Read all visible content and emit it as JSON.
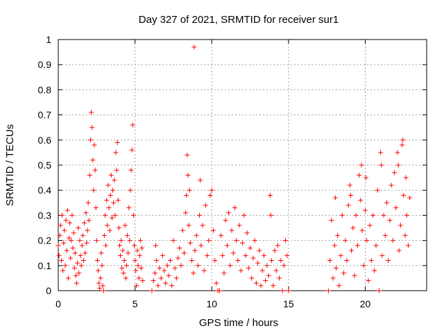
{
  "chart_data": {
    "type": "scatter",
    "title": "Day 327 of 2021, SRMTID for receiver sur1",
    "xlabel": "GPS time / hours",
    "ylabel": "SRMTID / TECUs",
    "xlim": [
      0,
      24
    ],
    "ylim": [
      0,
      1
    ],
    "xticks": [
      0,
      5,
      10,
      15,
      20
    ],
    "xtick_labels": [
      "0",
      "5",
      "10",
      "15",
      "20"
    ],
    "yticks": [
      0,
      0.1,
      0.2,
      0.3,
      0.4,
      0.5,
      0.6,
      0.7,
      0.8,
      0.9,
      1
    ],
    "ytick_labels": [
      "0",
      "0.1",
      "0.2",
      "0.3",
      "0.4",
      "0.5",
      "0.6",
      "0.7",
      "0.8",
      "0.9",
      "1"
    ],
    "grid": true,
    "marker": "+",
    "marker_color": "#ff0000",
    "series": [
      {
        "name": "SRMTID",
        "points": [
          [
            0.0,
            0.18
          ],
          [
            0.05,
            0.14
          ],
          [
            0.1,
            0.22
          ],
          [
            0.15,
            0.26
          ],
          [
            0.2,
            0.12
          ],
          [
            0.25,
            0.3
          ],
          [
            0.3,
            0.08
          ],
          [
            0.35,
            0.19
          ],
          [
            0.4,
            0.24
          ],
          [
            0.45,
            0.1
          ],
          [
            0.5,
            0.28
          ],
          [
            0.55,
            0.16
          ],
          [
            0.6,
            0.32
          ],
          [
            0.65,
            0.05
          ],
          [
            0.7,
            0.21
          ],
          [
            0.75,
            0.27
          ],
          [
            0.8,
            0.13
          ],
          [
            0.85,
            0.2
          ],
          [
            0.9,
            0.3
          ],
          [
            0.95,
            0.17
          ],
          [
            1.0,
            0.23
          ],
          [
            1.05,
            0.09
          ],
          [
            1.1,
            0.15
          ],
          [
            1.15,
            0.06
          ],
          [
            1.2,
            0.03
          ],
          [
            1.25,
            0.11
          ],
          [
            1.3,
            0.25
          ],
          [
            1.35,
            0.07
          ],
          [
            1.4,
            0.2
          ],
          [
            1.45,
            0.14
          ],
          [
            1.5,
            0.1
          ],
          [
            1.55,
            0.18
          ],
          [
            1.6,
            0.22
          ],
          [
            1.65,
            0.12
          ],
          [
            1.7,
            0.27
          ],
          [
            1.75,
            0.15
          ],
          [
            1.8,
            0.31
          ],
          [
            1.85,
            0.19
          ],
          [
            1.9,
            0.24
          ],
          [
            1.95,
            0.35
          ],
          [
            2.0,
            0.28
          ],
          [
            2.05,
            0.46
          ],
          [
            2.1,
            0.6
          ],
          [
            2.15,
            0.71
          ],
          [
            2.2,
            0.65
          ],
          [
            2.25,
            0.52
          ],
          [
            2.3,
            0.4
          ],
          [
            2.35,
            0.58
          ],
          [
            2.4,
            0.48
          ],
          [
            2.45,
            0.33
          ],
          [
            2.5,
            0.2
          ],
          [
            2.55,
            0.12
          ],
          [
            2.6,
            0.08
          ],
          [
            2.65,
            0.03
          ],
          [
            2.7,
            0.01
          ],
          [
            2.75,
            0.05
          ],
          [
            2.8,
            0.15
          ],
          [
            2.85,
            0.1
          ],
          [
            2.9,
            0.02
          ],
          [
            2.95,
            0.0
          ],
          [
            3.0,
            0.22
          ],
          [
            3.05,
            0.3
          ],
          [
            3.1,
            0.18
          ],
          [
            3.15,
            0.36
          ],
          [
            3.2,
            0.26
          ],
          [
            3.25,
            0.42
          ],
          [
            3.3,
            0.33
          ],
          [
            3.35,
            0.24
          ],
          [
            3.4,
            0.38
          ],
          [
            3.45,
            0.46
          ],
          [
            3.5,
            0.29
          ],
          [
            3.55,
            0.4
          ],
          [
            3.6,
            0.35
          ],
          [
            3.65,
            0.44
          ],
          [
            3.7,
            0.3
          ],
          [
            3.75,
            0.55
          ],
          [
            3.8,
            0.48
          ],
          [
            3.85,
            0.59
          ],
          [
            3.9,
            0.36
          ],
          [
            3.95,
            0.25
          ],
          [
            4.0,
            0.18
          ],
          [
            4.05,
            0.14
          ],
          [
            4.1,
            0.2
          ],
          [
            4.15,
            0.09
          ],
          [
            4.2,
            0.16
          ],
          [
            4.25,
            0.07
          ],
          [
            4.3,
            0.12
          ],
          [
            4.35,
            0.26
          ],
          [
            4.4,
            0.05
          ],
          [
            4.45,
            0.1
          ],
          [
            4.5,
            0.22
          ],
          [
            4.55,
            0.15
          ],
          [
            4.6,
            0.33
          ],
          [
            4.65,
            0.2
          ],
          [
            4.7,
            0.4
          ],
          [
            4.75,
            0.48
          ],
          [
            4.8,
            0.56
          ],
          [
            4.85,
            0.66
          ],
          [
            4.9,
            0.3
          ],
          [
            4.95,
            0.18
          ],
          [
            5.0,
            0.12
          ],
          [
            5.05,
            0.08
          ],
          [
            5.1,
            0.02
          ],
          [
            5.15,
            0.16
          ],
          [
            5.2,
            0.1
          ],
          [
            5.25,
            0.05
          ],
          [
            5.3,
            0.14
          ],
          [
            5.35,
            0.2
          ],
          [
            5.4,
            0.09
          ],
          [
            5.45,
            0.17
          ],
          [
            5.5,
            0.04
          ],
          [
            6.1,
            0.0
          ],
          [
            6.2,
            0.04
          ],
          [
            6.3,
            0.07
          ],
          [
            6.35,
            0.18
          ],
          [
            6.4,
            0.12
          ],
          [
            6.5,
            0.02
          ],
          [
            6.6,
            0.09
          ],
          [
            6.7,
            0.05
          ],
          [
            6.8,
            0.14
          ],
          [
            6.9,
            0.08
          ],
          [
            7.0,
            0.03
          ],
          [
            7.1,
            0.1
          ],
          [
            7.2,
            0.06
          ],
          [
            7.3,
            0.12
          ],
          [
            7.4,
            0.02
          ],
          [
            7.5,
            0.2
          ],
          [
            7.6,
            0.09
          ],
          [
            7.7,
            0.05
          ],
          [
            7.8,
            0.13
          ],
          [
            7.9,
            0.17
          ],
          [
            8.0,
            0.1
          ],
          [
            8.1,
            0.24
          ],
          [
            8.2,
            0.15
          ],
          [
            8.3,
            0.31
          ],
          [
            8.35,
            0.38
          ],
          [
            8.4,
            0.54
          ],
          [
            8.45,
            0.46
          ],
          [
            8.5,
            0.26
          ],
          [
            8.55,
            0.4
          ],
          [
            8.6,
            0.19
          ],
          [
            8.7,
            0.12
          ],
          [
            8.8,
            0.07
          ],
          [
            8.85,
            0.97
          ],
          [
            8.9,
            0.16
          ],
          [
            9.0,
            0.22
          ],
          [
            9.1,
            0.1
          ],
          [
            9.2,
            0.3
          ],
          [
            9.25,
            0.44
          ],
          [
            9.3,
            0.18
          ],
          [
            9.4,
            0.26
          ],
          [
            9.5,
            0.08
          ],
          [
            9.6,
            0.34
          ],
          [
            9.7,
            0.14
          ],
          [
            9.8,
            0.2
          ],
          [
            9.9,
            0.38
          ],
          [
            10.0,
            0.4
          ],
          [
            10.1,
            0.24
          ],
          [
            10.2,
            0.12
          ],
          [
            10.3,
            0.03
          ],
          [
            10.4,
            0.0
          ],
          [
            10.5,
            0.0
          ],
          [
            10.6,
            0.22
          ],
          [
            10.7,
            0.14
          ],
          [
            10.8,
            0.07
          ],
          [
            10.9,
            0.28
          ],
          [
            11.0,
            0.18
          ],
          [
            11.1,
            0.31
          ],
          [
            11.2,
            0.1
          ],
          [
            11.3,
            0.24
          ],
          [
            11.4,
            0.15
          ],
          [
            11.5,
            0.33
          ],
          [
            11.6,
            0.2
          ],
          [
            11.7,
            0.12
          ],
          [
            11.8,
            0.26
          ],
          [
            11.9,
            0.08
          ],
          [
            12.0,
            0.19
          ],
          [
            12.1,
            0.3
          ],
          [
            12.2,
            0.14
          ],
          [
            12.3,
            0.23
          ],
          [
            12.4,
            0.09
          ],
          [
            12.5,
            0.17
          ],
          [
            12.6,
            0.05
          ],
          [
            12.7,
            0.13
          ],
          [
            12.8,
            0.2
          ],
          [
            12.9,
            0.03
          ],
          [
            13.0,
            0.11
          ],
          [
            13.1,
            0.16
          ],
          [
            13.2,
            0.02
          ],
          [
            13.3,
            0.08
          ],
          [
            13.4,
            0.14
          ],
          [
            13.5,
            0.04
          ],
          [
            13.6,
            0.1
          ],
          [
            13.7,
            0.06
          ],
          [
            13.8,
            0.38
          ],
          [
            13.85,
            0.3
          ],
          [
            13.9,
            0.12
          ],
          [
            14.0,
            0.02
          ],
          [
            14.1,
            0.16
          ],
          [
            14.2,
            0.08
          ],
          [
            14.3,
            0.18
          ],
          [
            14.4,
            0.05
          ],
          [
            14.5,
            0.12
          ],
          [
            14.6,
            0.0
          ],
          [
            14.7,
            0.1
          ],
          [
            14.8,
            0.2
          ],
          [
            14.9,
            0.14
          ],
          [
            15.0,
            0.0
          ],
          [
            17.6,
            0.0
          ],
          [
            17.7,
            0.12
          ],
          [
            17.8,
            0.28
          ],
          [
            17.9,
            0.05
          ],
          [
            18.0,
            0.18
          ],
          [
            18.05,
            0.37
          ],
          [
            18.1,
            0.09
          ],
          [
            18.2,
            0.22
          ],
          [
            18.3,
            0.02
          ],
          [
            18.4,
            0.14
          ],
          [
            18.5,
            0.3
          ],
          [
            18.6,
            0.07
          ],
          [
            18.7,
            0.2
          ],
          [
            18.8,
            0.12
          ],
          [
            18.9,
            0.34
          ],
          [
            19.0,
            0.42
          ],
          [
            19.05,
            0.38
          ],
          [
            19.1,
            0.16
          ],
          [
            19.2,
            0.25
          ],
          [
            19.3,
            0.06
          ],
          [
            19.4,
            0.3
          ],
          [
            19.5,
            0.18
          ],
          [
            19.6,
            0.46
          ],
          [
            19.7,
            0.36
          ],
          [
            19.75,
            0.5
          ],
          [
            19.8,
            0.24
          ],
          [
            19.9,
            0.1
          ],
          [
            20.0,
            0.32
          ],
          [
            20.05,
            0.45
          ],
          [
            20.1,
            0.2
          ],
          [
            20.2,
            0.04
          ],
          [
            20.3,
            0.26
          ],
          [
            20.4,
            0.12
          ],
          [
            20.5,
            0.3
          ],
          [
            20.6,
            0.08
          ],
          [
            20.7,
            0.18
          ],
          [
            20.8,
            0.4
          ],
          [
            20.9,
            0.0
          ],
          [
            21.0,
            0.55
          ],
          [
            21.05,
            0.5
          ],
          [
            21.1,
            0.14
          ],
          [
            21.2,
            0.3
          ],
          [
            21.3,
            0.22
          ],
          [
            21.4,
            0.35
          ],
          [
            21.5,
            0.12
          ],
          [
            21.6,
            0.28
          ],
          [
            21.7,
            0.42
          ],
          [
            21.8,
            0.2
          ],
          [
            21.9,
            0.47
          ],
          [
            22.0,
            0.33
          ],
          [
            22.1,
            0.55
          ],
          [
            22.15,
            0.5
          ],
          [
            22.2,
            0.16
          ],
          [
            22.3,
            0.26
          ],
          [
            22.4,
            0.58
          ],
          [
            22.45,
            0.6
          ],
          [
            22.5,
            0.38
          ],
          [
            22.6,
            0.22
          ],
          [
            22.65,
            0.45
          ],
          [
            22.7,
            0.3
          ],
          [
            22.8,
            0.18
          ],
          [
            22.9,
            0.37
          ]
        ]
      }
    ]
  }
}
